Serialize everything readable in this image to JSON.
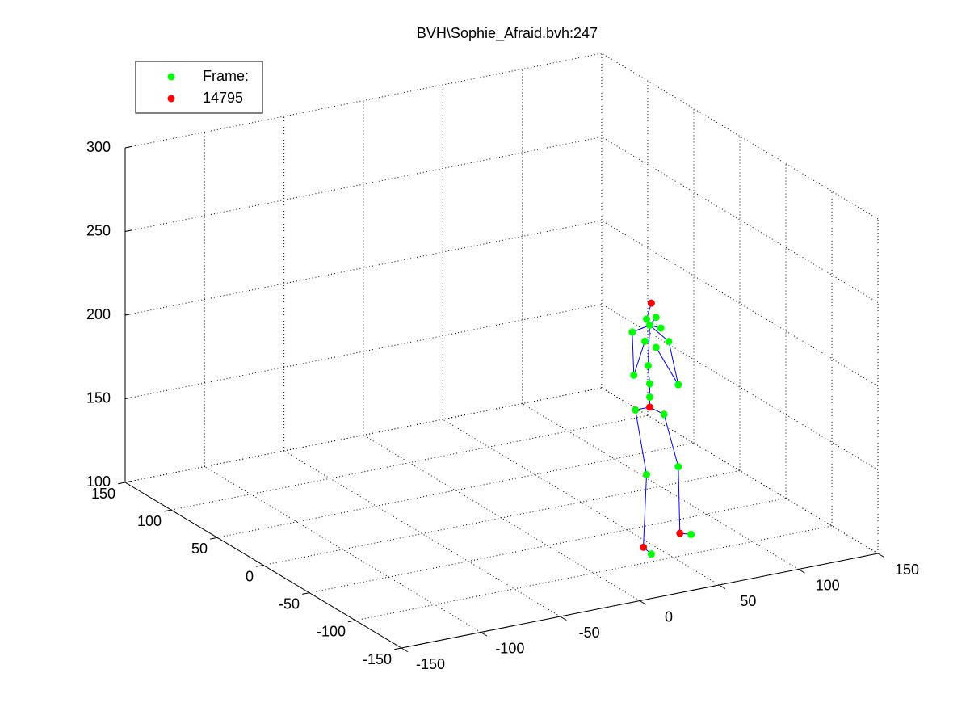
{
  "chart_data": {
    "type": "scatter3d",
    "title": "BVH\\Sophie_Afraid.bvh:247",
    "xlim": [
      -150,
      150
    ],
    "ylim": [
      -150,
      150
    ],
    "zlim": [
      100,
      300
    ],
    "xticks": [
      -150,
      -100,
      -50,
      0,
      50,
      100,
      150
    ],
    "yticks": [
      -150,
      -100,
      -50,
      0,
      50,
      100,
      150
    ],
    "zticks": [
      100,
      150,
      200,
      250,
      300
    ],
    "grid": true,
    "legend": "upper left",
    "bone_color": "#0000ff",
    "series": [
      {
        "name": "Frame:",
        "color": "#00ff00",
        "x": [
          45,
          70,
          42,
          62,
          35,
          53,
          44,
          44,
          43,
          41,
          48,
          56,
          33,
          34,
          62,
          42,
          48,
          51,
          44
        ],
        "y": [
          -85,
          -85,
          -85,
          -85,
          -85,
          -85,
          -85,
          -85,
          -85,
          -85,
          -85,
          -85,
          -85,
          -85,
          -85,
          -85,
          -85,
          -85,
          -85
        ],
        "z": [
          98,
          105,
          146,
          147,
          186,
          180,
          192,
          200,
          211,
          226,
          221,
          223,
          233,
          207,
          196,
          239,
          239,
          232,
          235
        ]
      },
      {
        "name": "14795",
        "color": "#ff0000",
        "x": [
          40,
          63,
          44,
          45
        ],
        "y": [
          -85,
          -85,
          -85,
          -85
        ],
        "z": [
          103,
          107,
          186,
          248
        ]
      }
    ],
    "bones": [
      [
        [
          1,
          0
        ],
        [
          0,
          2
        ]
      ],
      [
        [
          0,
          2
        ],
        [
          0,
          4
        ]
      ],
      [
        [
          0,
          4
        ],
        [
          1,
          2
        ]
      ],
      [
        [
          1,
          2
        ],
        [
          0,
          5
        ]
      ],
      [
        [
          0,
          5
        ],
        [
          0,
          3
        ]
      ],
      [
        [
          0,
          3
        ],
        [
          1,
          1
        ]
      ],
      [
        [
          1,
          0
        ],
        [
          0,
          0
        ]
      ],
      [
        [
          1,
          1
        ],
        [
          0,
          1
        ]
      ],
      [
        [
          1,
          2
        ],
        [
          0,
          6
        ]
      ],
      [
        [
          0,
          6
        ],
        [
          0,
          7
        ]
      ],
      [
        [
          0,
          7
        ],
        [
          0,
          8
        ]
      ],
      [
        [
          0,
          8
        ],
        [
          0,
          18
        ]
      ],
      [
        [
          0,
          18
        ],
        [
          0,
          15
        ]
      ],
      [
        [
          0,
          18
        ],
        [
          0,
          16
        ]
      ],
      [
        [
          0,
          18
        ],
        [
          0,
          17
        ]
      ],
      [
        [
          0,
          15
        ],
        [
          1,
          3
        ]
      ],
      [
        [
          0,
          18
        ],
        [
          0,
          12
        ]
      ],
      [
        [
          0,
          12
        ],
        [
          0,
          13
        ]
      ],
      [
        [
          0,
          13
        ],
        [
          0,
          9
        ]
      ],
      [
        [
          0,
          18
        ],
        [
          0,
          11
        ]
      ],
      [
        [
          0,
          11
        ],
        [
          0,
          14
        ]
      ],
      [
        [
          0,
          14
        ],
        [
          0,
          10
        ]
      ]
    ]
  }
}
